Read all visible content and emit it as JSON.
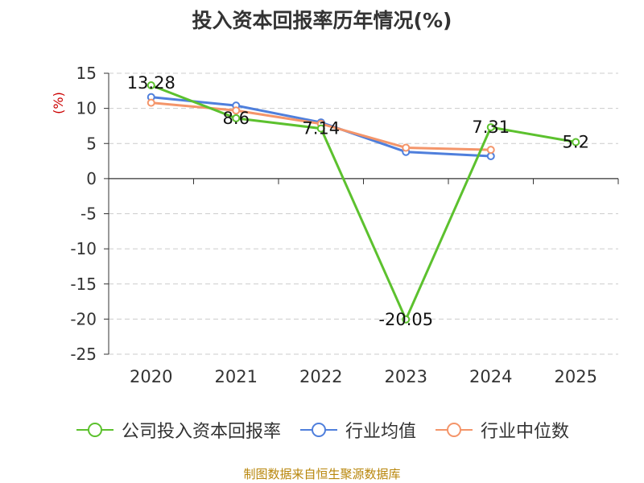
{
  "chart_data": {
    "type": "line",
    "title": "投入资本回报率历年情况(%)",
    "ylabel": "(%)",
    "xlabel": "",
    "categories": [
      "2020",
      "2021",
      "2022",
      "2023",
      "2024",
      "2025"
    ],
    "ylim": [
      -25,
      15
    ],
    "yticks": [
      15,
      10,
      5,
      0,
      -5,
      -10,
      -15,
      -20,
      -25
    ],
    "grid": true,
    "legend_position": "bottom",
    "series": [
      {
        "name": "公司投入资本回报率",
        "color": "#5cc12e",
        "values": [
          13.28,
          8.6,
          7.14,
          -20.05,
          7.31,
          5.2
        ],
        "labels": [
          "13.28",
          "8.6",
          "7.14",
          "-20.05",
          "7.31",
          "5.2"
        ]
      },
      {
        "name": "行业均值",
        "color": "#4f7fdc",
        "values": [
          11.6,
          10.4,
          8.0,
          3.8,
          3.2,
          null
        ]
      },
      {
        "name": "行业中位数",
        "color": "#f4956a",
        "values": [
          10.8,
          9.7,
          7.8,
          4.4,
          4.1,
          null
        ]
      }
    ]
  },
  "source": "制图数据来自恒生聚源数据库"
}
